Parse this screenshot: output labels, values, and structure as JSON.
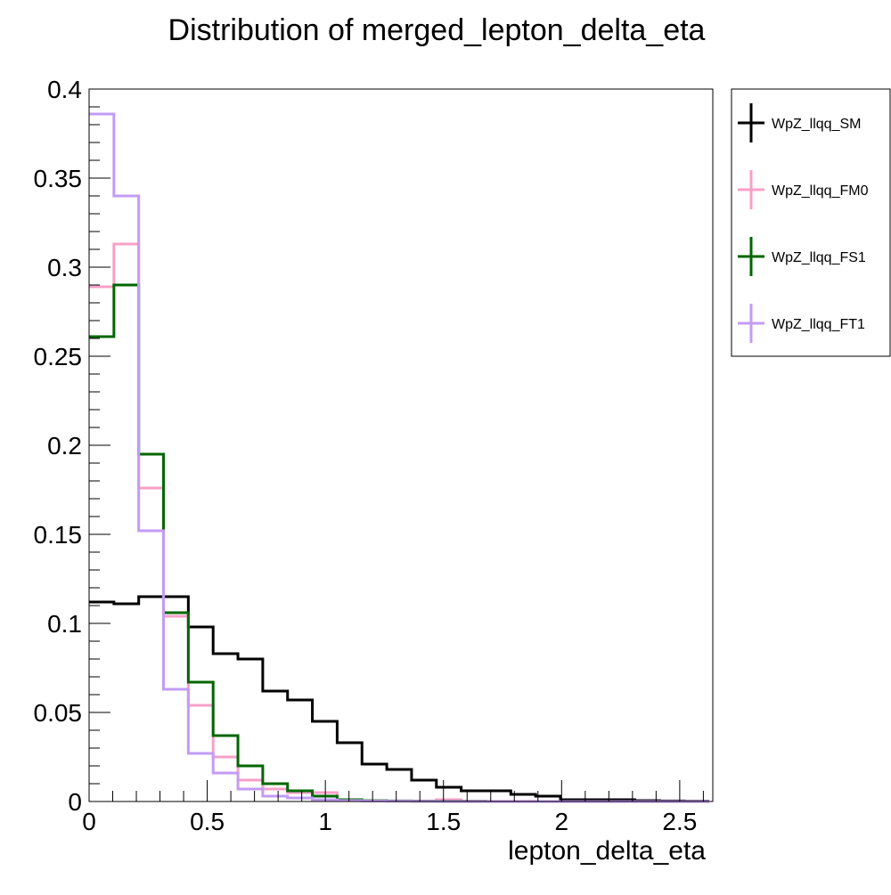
{
  "chart_data": {
    "type": "line",
    "title": "Distribution of merged_lepton_delta_eta",
    "xlabel": "lepton_delta_eta",
    "ylabel": "",
    "xlim": [
      0,
      2.64
    ],
    "ylim": [
      0,
      0.4
    ],
    "grid": false,
    "legend_position": "outside-right",
    "x_edges": [
      0,
      0.105,
      0.21,
      0.315,
      0.42,
      0.525,
      0.63,
      0.735,
      0.84,
      0.945,
      1.05,
      1.155,
      1.26,
      1.365,
      1.47,
      1.575,
      1.68,
      1.785,
      1.89,
      1.995,
      2.1,
      2.205,
      2.31,
      2.415,
      2.52,
      2.625
    ],
    "x_ticks": [
      {
        "value": 0,
        "label": "0"
      },
      {
        "value": 0.5,
        "label": "0.5"
      },
      {
        "value": 1,
        "label": "1"
      },
      {
        "value": 1.5,
        "label": "1.5"
      },
      {
        "value": 2,
        "label": "2"
      },
      {
        "value": 2.5,
        "label": "2.5"
      }
    ],
    "y_ticks": [
      {
        "value": 0,
        "label": "0"
      },
      {
        "value": 0.05,
        "label": "0.05"
      },
      {
        "value": 0.1,
        "label": "0.1"
      },
      {
        "value": 0.15,
        "label": "0.15"
      },
      {
        "value": 0.2,
        "label": "0.2"
      },
      {
        "value": 0.25,
        "label": "0.25"
      },
      {
        "value": 0.3,
        "label": "0.3"
      },
      {
        "value": 0.35,
        "label": "0.35"
      },
      {
        "value": 0.4,
        "label": "0.4"
      }
    ],
    "series": [
      {
        "name": "WpZ_llqq_SM",
        "color": "#000000",
        "values": [
          0.112,
          0.111,
          0.115,
          0.115,
          0.098,
          0.083,
          0.08,
          0.062,
          0.057,
          0.045,
          0.033,
          0.021,
          0.018,
          0.012,
          0.008,
          0.006,
          0.006,
          0.004,
          0.003,
          0.001,
          0.001,
          0.001,
          0.0005,
          0.0003,
          0.0002
        ]
      },
      {
        "name": "WpZ_llqq_FM0",
        "color": "#f7a0c8",
        "values": [
          0.289,
          0.313,
          0.176,
          0.104,
          0.054,
          0.025,
          0.012,
          0.007,
          0.005,
          0.005,
          0.001,
          0.0005,
          0.0003,
          0.0003,
          0.001,
          0.0002,
          0.0001,
          0.0001,
          0,
          0,
          0,
          0,
          0,
          0,
          0
        ]
      },
      {
        "name": "WpZ_llqq_FS1",
        "color": "#006600",
        "values": [
          0.261,
          0.29,
          0.195,
          0.106,
          0.067,
          0.037,
          0.02,
          0.01,
          0.006,
          0.003,
          0.001,
          0.0005,
          0.0003,
          0.0002,
          0.0001,
          0.0001,
          0,
          0,
          0,
          0,
          0,
          0,
          0,
          0,
          0
        ]
      },
      {
        "name": "WpZ_llqq_FT1",
        "color": "#c39cf5",
        "values": [
          0.386,
          0.34,
          0.152,
          0.063,
          0.027,
          0.016,
          0.007,
          0.003,
          0.002,
          0.001,
          0.0005,
          0.0003,
          0.0002,
          0.0001,
          0,
          0,
          0,
          0,
          0,
          0,
          0,
          0,
          0,
          0,
          0
        ]
      }
    ]
  }
}
